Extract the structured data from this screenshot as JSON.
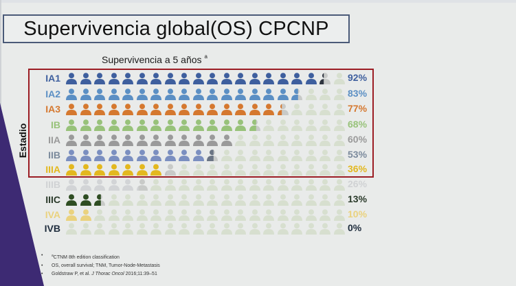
{
  "slide": {
    "title": "Supervivencia global(OS)  CPCNP",
    "subtitle": "Supervivencia a 5 años",
    "subtitle_sup": "a",
    "y_axis_label": "Estadio",
    "footnotes": [
      {
        "sup": "a",
        "text": "CTNM 8th edition classification"
      },
      {
        "text": "OS, overall survival; TNM, Tumor-Node-Metastasis"
      },
      {
        "pre": "Goldstraw P, et al. ",
        "italic": "J Thorac Oncol",
        "post": " 2016;11:39–51"
      }
    ]
  },
  "chart_data": {
    "type": "pictograph",
    "title": "Supervivencia a 5 años",
    "ylabel": "Estadio",
    "icons_per_row": 20,
    "percent_per_icon": 5,
    "categories": [
      "IA1",
      "IA2",
      "IA3",
      "IB",
      "IIA",
      "IIB",
      "IIIA",
      "IIIB",
      "IIIC",
      "IVA",
      "IVB"
    ],
    "values": [
      92,
      83,
      77,
      68,
      60,
      53,
      36,
      26,
      13,
      10,
      0
    ],
    "labels": [
      "92%",
      "83%",
      "77%",
      "68%",
      "60%",
      "53%",
      "36%",
      "26%",
      "13%",
      "10%",
      "0%"
    ],
    "colors": [
      "#3e5f9e",
      "#5b8fc4",
      "#d5782f",
      "#98c27a",
      "#9a9a9a",
      "#7b8fc0",
      "#e3b81f",
      "#c9cbcf",
      "#2e4d22",
      "#ead27e",
      "#1f2d3d"
    ],
    "highlighted_box": [
      "IA1",
      "IA2",
      "IA3",
      "IB",
      "IIA",
      "IIB",
      "IIIA"
    ],
    "faded_icon_color": "#d7dfcf",
    "annotation_border_color": "#9b1c23"
  },
  "rows": [
    {
      "stage": "IA1",
      "pct": "92%",
      "value": 92,
      "color": "#3e5f9e",
      "label_color": "#3e5f9e",
      "half_color": "#2f3540"
    },
    {
      "stage": "IA2",
      "pct": "83%",
      "value": 83,
      "color": "#5b8fc4",
      "label_color": "#5b8fc4",
      "half_color": "#5b8fc4"
    },
    {
      "stage": "IA3",
      "pct": "77%",
      "value": 77,
      "color": "#d5782f",
      "label_color": "#d5782f",
      "half_color": "#d5782f"
    },
    {
      "stage": "IB",
      "pct": "68%",
      "value": 68,
      "color": "#98c27a",
      "label_color": "#98c27a",
      "half_color": "#98c27a"
    },
    {
      "stage": "IIA",
      "pct": "60%",
      "value": 60,
      "color": "#9a9a9a",
      "label_color": "#9a9a9a",
      "half_color": "#9a9a9a"
    },
    {
      "stage": "IIB",
      "pct": "53%",
      "value": 53,
      "color": "#7b8fc0",
      "label_color": "#7b8a9c",
      "half_color": "#6b7585"
    },
    {
      "stage": "IIIA",
      "pct": "36%",
      "value": 36,
      "color": "#e3b81f",
      "label_color": "#e3b81f",
      "half_color": "#c2c2c2"
    },
    {
      "stage": "IIIB",
      "pct": "26%",
      "value": 26,
      "color": "#d2d4d6",
      "label_color": "#d0d2d4",
      "half_color": "#d2d4d6"
    },
    {
      "stage": "IIIC",
      "pct": "13%",
      "value": 13,
      "color": "#2e4d22",
      "label_color": "#2a3a2a",
      "half_color": "#2e4d22"
    },
    {
      "stage": "IVA",
      "pct": "10%",
      "value": 10,
      "color": "#ead27e",
      "label_color": "#ead27e",
      "half_color": "#ead27e"
    },
    {
      "stage": "IVB",
      "pct": "0%",
      "value": 0,
      "color": "#1f2d3d",
      "label_color": "#1f2d3d",
      "half_color": "#1f2d3d"
    }
  ]
}
